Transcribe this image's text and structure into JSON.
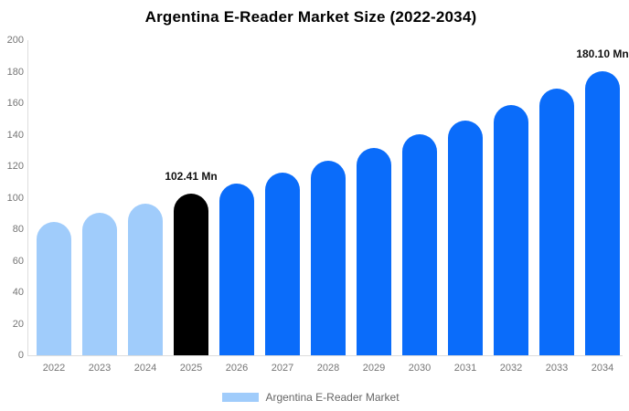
{
  "title": "Argentina E-Reader Market Size (2022-2034)",
  "legend": {
    "items": [
      {
        "label": "Argentina E-Reader Market",
        "swatch_color": "#a0ccfb"
      }
    ]
  },
  "colors": {
    "historical": "#a0ccfb",
    "base_year": "#000000",
    "forecast": "#0a6cfa",
    "axis_line": "#dddddd",
    "tick_text": "#757575",
    "annotation_text": "#111111",
    "title_text": "#000000",
    "legend_text": "#666666",
    "background": "#ffffff"
  },
  "chart_data": {
    "type": "bar",
    "title": "Argentina E-Reader Market Size (2022-2034)",
    "series_name": "Argentina E-Reader Market",
    "unit": "Mn",
    "categories": [
      "2022",
      "2023",
      "2024",
      "2025",
      "2026",
      "2027",
      "2028",
      "2029",
      "2030",
      "2031",
      "2032",
      "2033",
      "2034"
    ],
    "values": [
      84.9,
      90.3,
      96.2,
      102.41,
      109.0,
      116.1,
      123.6,
      131.6,
      140.1,
      149.2,
      158.8,
      169.1,
      180.1
    ],
    "bar_color_roles": [
      "historical",
      "historical",
      "historical",
      "base_year",
      "forecast",
      "forecast",
      "forecast",
      "forecast",
      "forecast",
      "forecast",
      "forecast",
      "forecast",
      "forecast"
    ],
    "annotations": [
      {
        "category": "2025",
        "text": "102.41 Mn"
      },
      {
        "category": "2034",
        "text": "180.10 Mn"
      }
    ],
    "y_ticks": [
      0,
      20,
      40,
      60,
      80,
      100,
      120,
      140,
      160,
      180,
      200
    ],
    "ylim": [
      0,
      200
    ],
    "xlabel": "",
    "ylabel": "",
    "grid": false,
    "legend_position": "bottom"
  }
}
